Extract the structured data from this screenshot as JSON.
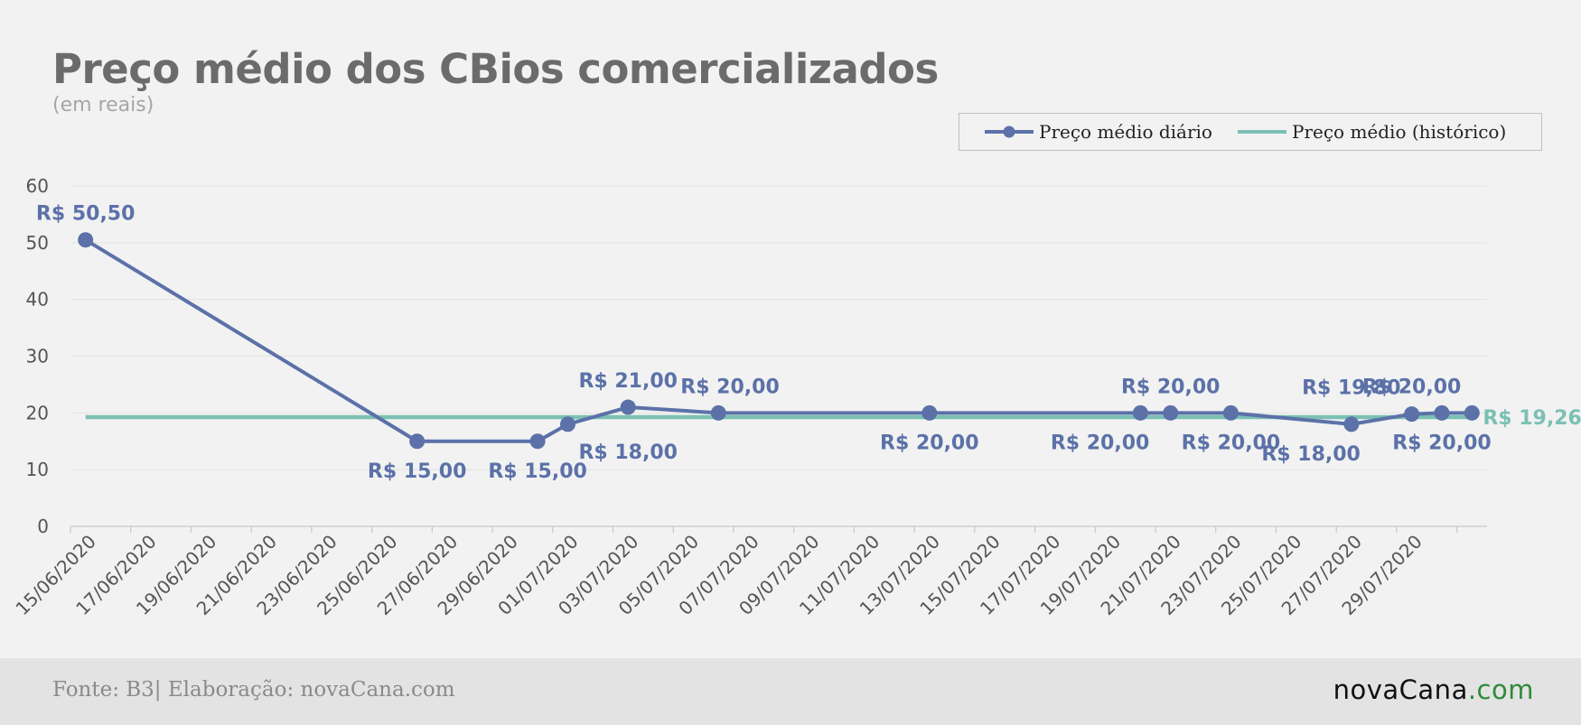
{
  "header": {
    "title": "Preço médio dos CBios comercializados",
    "subtitle": "(em reais)"
  },
  "footer": {
    "source": "Fonte: B3| Elaboração: novaCana.com",
    "logo_main": "novaCana",
    "logo_suffix": ".com"
  },
  "colors": {
    "daily": "#5b71a8",
    "historic": "#7cc0b4",
    "grid": "#e3e3e3",
    "axis_text": "#555555"
  },
  "chart_data": {
    "type": "line",
    "title": "Preço médio dos CBios comercializados",
    "subtitle": "(em reais)",
    "ylim": [
      0,
      60
    ],
    "yticks": [
      0,
      10,
      20,
      30,
      40,
      50,
      60
    ],
    "xlim": [
      "2020-06-15",
      "2020-07-31"
    ],
    "xtick_labels": [
      "15/06/2020",
      "17/06/2020",
      "19/06/2020",
      "21/06/2020",
      "23/06/2020",
      "25/06/2020",
      "27/06/2020",
      "29/06/2020",
      "01/07/2020",
      "03/07/2020",
      "05/07/2020",
      "07/07/2020",
      "09/07/2020",
      "11/07/2020",
      "13/07/2020",
      "15/07/2020",
      "17/07/2020",
      "19/07/2020",
      "21/07/2020",
      "23/07/2020",
      "25/07/2020",
      "27/07/2020",
      "29/07/2020"
    ],
    "grid": true,
    "legend_position": "top-right",
    "series": [
      {
        "name": "Preço médio diário",
        "style": "line-markers",
        "points": [
          {
            "x": "2020-06-15",
            "y": 50.5,
            "label": "R$ 50,50",
            "pos": "above"
          },
          {
            "x": "2020-06-26",
            "y": 15.0,
            "label": "R$ 15,00",
            "pos": "below"
          },
          {
            "x": "2020-06-30",
            "y": 15.0,
            "label": "R$ 15,00",
            "pos": "below"
          },
          {
            "x": "2020-07-01",
            "y": 18.0,
            "label": "R$ 18,00",
            "pos": "below-right"
          },
          {
            "x": "2020-07-03",
            "y": 21.0,
            "label": "R$ 21,00",
            "pos": "above"
          },
          {
            "x": "2020-07-06",
            "y": 20.0,
            "label": "R$ 20,00",
            "pos": "above-right"
          },
          {
            "x": "2020-07-13",
            "y": 20.0,
            "label": "R$ 20,00",
            "pos": "below"
          },
          {
            "x": "2020-07-20",
            "y": 20.0,
            "label": "R$ 20,00",
            "pos": "below-left"
          },
          {
            "x": "2020-07-21",
            "y": 20.0,
            "label": "R$ 20,00",
            "pos": "above"
          },
          {
            "x": "2020-07-23",
            "y": 20.0,
            "label": "R$ 20,00",
            "pos": "below"
          },
          {
            "x": "2020-07-27",
            "y": 18.0,
            "label": "R$ 18,00",
            "pos": "below-left"
          },
          {
            "x": "2020-07-29",
            "y": 19.8,
            "label": "R$ 19,80",
            "pos": "above-left"
          },
          {
            "x": "2020-07-30",
            "y": 20.0,
            "label": "R$ 20,00",
            "pos": "below"
          },
          {
            "x": "2020-07-31",
            "y": 20.0,
            "label": "R$ 20,00",
            "pos": "above-left"
          }
        ]
      },
      {
        "name": "Preço médio (histórico)",
        "style": "line",
        "points": [
          {
            "x": "2020-06-15",
            "y": 19.26
          },
          {
            "x": "2020-07-31",
            "y": 19.26,
            "label": "R$ 19,26",
            "pos": "right"
          }
        ]
      }
    ]
  }
}
